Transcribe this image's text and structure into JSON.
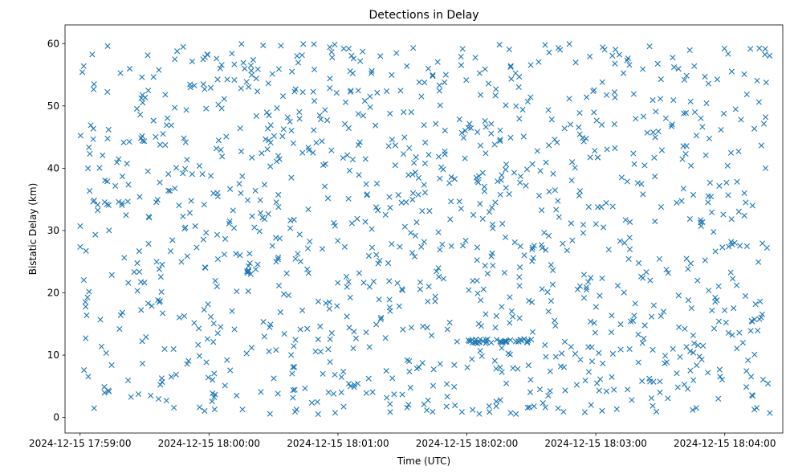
{
  "chart_data": {
    "type": "scatter",
    "title": "Detections in Delay",
    "xlabel": "Time (UTC)",
    "ylabel": "Bistatic Delay (km)",
    "marker": "x",
    "color": "#1f77b4",
    "grid": false,
    "x_format": "YYYY-MM-DD HH:MM:SS",
    "xlim": [
      "2024-12-15 17:58:53",
      "2024-12-15 18:04:27"
    ],
    "ylim": [
      -2.5,
      63
    ],
    "x_ticks": [
      "2024-12-15 17:59:00",
      "2024-12-15 18:00:00",
      "2024-12-15 18:01:00",
      "2024-12-15 18:02:00",
      "2024-12-15 18:03:00",
      "2024-12-15 18:04:00"
    ],
    "y_ticks": [
      0,
      10,
      20,
      30,
      40,
      50,
      60
    ],
    "series": [
      {
        "points_comment": "",
        "x_start": "2024-12-15 17:59:00",
        "x_end": "2024-12-15 18:04:21",
        "y_min": 0.5,
        "y_max": 60,
        "count": 1200
      }
    ]
  }
}
